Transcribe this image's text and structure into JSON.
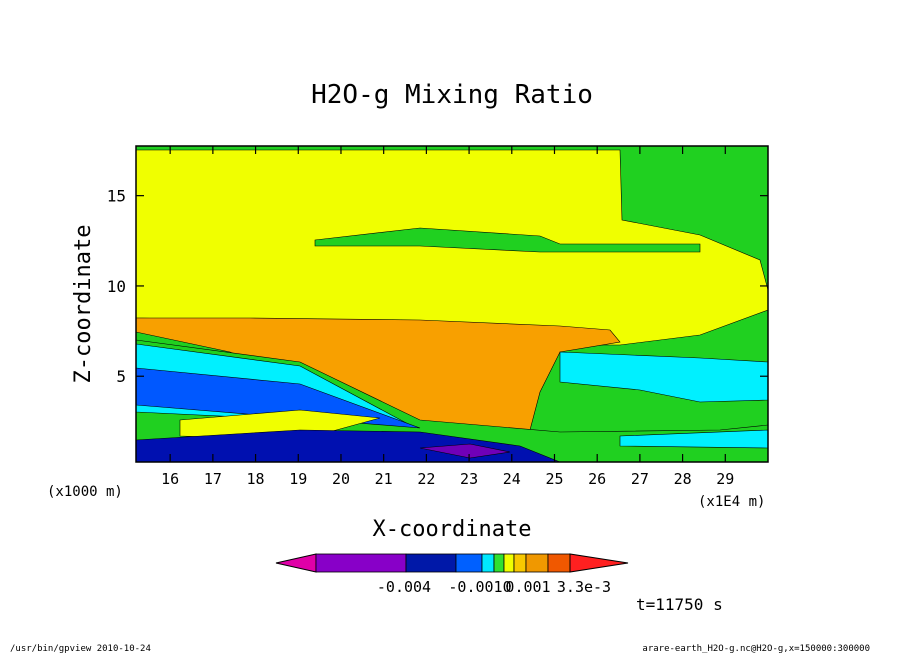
{
  "chart_data": {
    "type": "heatmap",
    "title": "H2O-g Mixing Ratio",
    "xlabel": "X-coordinate",
    "ylabel": "Z-coordinate",
    "x_unit_left": "(x1000 m)",
    "x_unit_right": "(x1E4 m)",
    "xlim": [
      15.2,
      30.0
    ],
    "ylim": [
      0.25,
      17.75
    ],
    "x_ticks": [
      "16",
      "17",
      "18",
      "19",
      "20",
      "21",
      "22",
      "23",
      "24",
      "25",
      "26",
      "27",
      "28",
      "29"
    ],
    "x_tick_values": [
      16,
      17,
      18,
      19,
      20,
      21,
      22,
      23,
      24,
      25,
      26,
      27,
      28,
      29
    ],
    "y_ticks": [
      "5",
      "10",
      "15"
    ],
    "y_tick_values": [
      5,
      10,
      15
    ],
    "time_label": "t=11750 s",
    "colorbar": {
      "labels": [
        "-0.004",
        "-0.0010",
        "0.001",
        "3.3e-3"
      ],
      "colors": [
        "#e000a8",
        "#8800c8",
        "#0018a8",
        "#0060ff",
        "#00e8ff",
        "#30e030",
        "#f0ff00",
        "#f8c800",
        "#f09800",
        "#f05800",
        "#ff2020"
      ]
    },
    "colors": {
      "green": "#20d020",
      "yellow": "#f0ff00",
      "orange": "#f8a000",
      "cyan": "#00f0ff",
      "blue": "#0058ff",
      "navy": "#0010b0",
      "purple": "#7000b8"
    }
  },
  "footer": {
    "left": "/usr/bin/gpview  2010-10-24",
    "right": "arare-earth_H2O-g.nc@H2O-g,x=150000:300000"
  }
}
